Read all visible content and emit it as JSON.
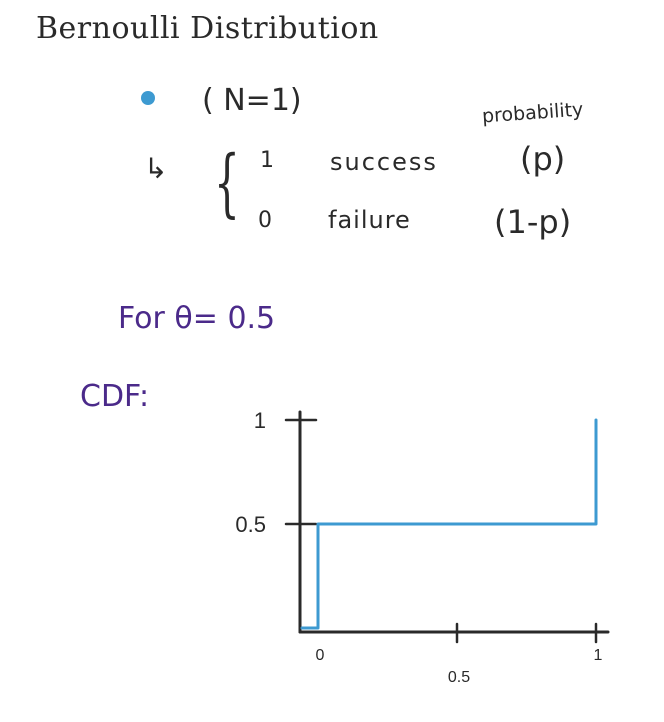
{
  "title": "Bernoulli Distribution",
  "n_label": "( N=1)",
  "arrow": "↳",
  "outcomes": [
    {
      "value": "1",
      "label": "success",
      "prob": "(p)"
    },
    {
      "value": "0",
      "label": "failure",
      "prob": "(1-p)"
    }
  ],
  "probability_header": "probability",
  "theta_text": "For θ= 0.5",
  "cdf_label": "CDF:",
  "colors": {
    "ink": "#2a2a2a",
    "purple": "#4b2a8a",
    "blue": "#3d9ad1",
    "bullet": "#3d9ad1"
  },
  "chart_data": {
    "type": "line",
    "title": "",
    "xlabel": "",
    "ylabel": "",
    "x_ticks": [
      "0",
      "0.5",
      "1"
    ],
    "y_ticks": [
      "0.5",
      "1"
    ],
    "xlim": [
      0,
      1
    ],
    "ylim": [
      0,
      1
    ],
    "series": [
      {
        "x": [
          0,
          0,
          1,
          1
        ],
        "y": [
          0,
          0.5,
          0.5,
          1
        ]
      }
    ]
  }
}
